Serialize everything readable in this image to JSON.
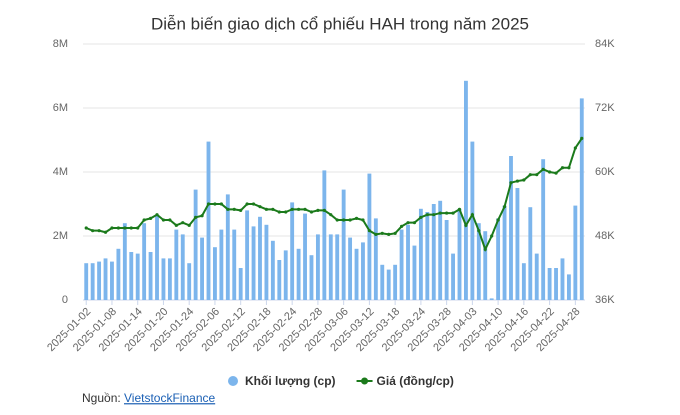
{
  "chart_data": {
    "type": "combo",
    "title": "Diễn biến giao dịch cổ phiếu HAH trong năm 2025",
    "categories": [
      "2025-01-02",
      null,
      null,
      null,
      "2025-01-08",
      null,
      null,
      null,
      "2025-01-14",
      null,
      null,
      null,
      "2025-01-20",
      null,
      null,
      null,
      "2025-01-24",
      null,
      null,
      null,
      "2025-02-06",
      null,
      null,
      null,
      "2025-02-12",
      null,
      null,
      null,
      "2025-02-18",
      null,
      null,
      null,
      "2025-02-24",
      null,
      null,
      null,
      "2025-02-28",
      null,
      null,
      null,
      "2025-03-06",
      null,
      null,
      null,
      "2025-03-12",
      null,
      null,
      null,
      "2025-03-18",
      null,
      null,
      null,
      "2025-03-24",
      null,
      null,
      null,
      "2025-03-28",
      null,
      null,
      null,
      "2025-04-03",
      null,
      null,
      null,
      "2025-04-10",
      null,
      null,
      null,
      "2025-04-16",
      null,
      null,
      null,
      "2025-04-22",
      null,
      null,
      null,
      "2025-04-28",
      null
    ],
    "series": [
      {
        "name": "Khối lượng (cp)",
        "type": "bar",
        "color": "#7cb5ec",
        "values": [
          1150000,
          1150000,
          1200000,
          1300000,
          1200000,
          1600000,
          2400000,
          1500000,
          1450000,
          2400000,
          1500000,
          2650000,
          1300000,
          1300000,
          2200000,
          2050000,
          1150000,
          3450000,
          1950000,
          4950000,
          1650000,
          2200000,
          3300000,
          2200000,
          1000000,
          2800000,
          2300000,
          2600000,
          2350000,
          1850000,
          1250000,
          1550000,
          3050000,
          1600000,
          2700000,
          1400000,
          2050000,
          4050000,
          2050000,
          2050000,
          3450000,
          1950000,
          1600000,
          1800000,
          3950000,
          2550000,
          1100000,
          950000,
          1100000,
          2200000,
          2350000,
          1700000,
          2850000,
          2750000,
          3000000,
          3100000,
          2500000,
          1450000,
          2850000,
          6850000,
          4950000,
          2400000,
          2150000,
          50000,
          2550000,
          2950000,
          4500000,
          3500000,
          1150000,
          2900000,
          1450000,
          4400000,
          1000000,
          1000000,
          1300000,
          800000,
          2950000,
          6300000
        ]
      },
      {
        "name": "Giá (đồng/cp)",
        "type": "line",
        "axis": "y2",
        "color": "#1b7a1b",
        "values": [
          49500,
          49000,
          49000,
          48700,
          49500,
          49500,
          49500,
          49500,
          49500,
          51000,
          51300,
          52000,
          51000,
          51000,
          50000,
          50500,
          50000,
          51500,
          51800,
          54000,
          54000,
          54000,
          53000,
          53000,
          52800,
          54000,
          54000,
          53500,
          53000,
          53000,
          52500,
          52500,
          53000,
          53000,
          53000,
          52500,
          52800,
          52800,
          52000,
          51000,
          51000,
          51000,
          51300,
          51000,
          49000,
          48300,
          48500,
          48300,
          48500,
          49800,
          50500,
          50500,
          51500,
          52000,
          52000,
          52300,
          52300,
          52300,
          53000,
          50000,
          52000,
          49000,
          45500,
          48000,
          51000,
          53500,
          58000,
          58300,
          58500,
          59500,
          59500,
          60500,
          60000,
          59800,
          60800,
          60800,
          64500,
          66300
        ]
      }
    ],
    "ylim": [
      0,
      8000000
    ],
    "yticks": [
      0,
      {
        "value": 2000000,
        "label": "2M"
      },
      {
        "value": 4000000,
        "label": "4M"
      },
      {
        "value": 6000000,
        "label": "6M"
      },
      {
        "value": 8000000,
        "label": "8M"
      }
    ],
    "y2lim": [
      36000,
      84000
    ],
    "y2ticks": [
      {
        "value": 36000,
        "label": "36K"
      },
      {
        "value": 48000,
        "label": "48K"
      },
      {
        "value": 60000,
        "label": "60K"
      },
      {
        "value": 72000,
        "label": "72K"
      },
      {
        "value": 84000,
        "label": "84K"
      }
    ],
    "grid": true,
    "legend": "bottom",
    "source_label": "Nguồn:",
    "source_link": "VietstockFinance"
  }
}
